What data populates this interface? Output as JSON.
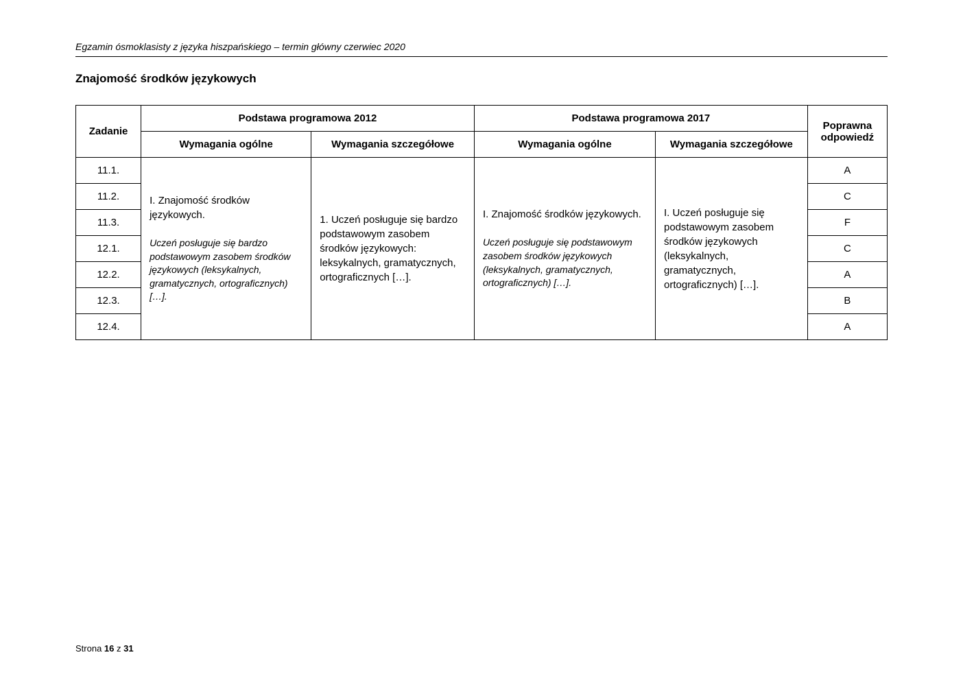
{
  "header": {
    "doc_title": "Egzamin ósmoklasisty z języka hiszpańskiego – termin główny czerwiec 2020",
    "section_title": "Znajomość środków językowych"
  },
  "table": {
    "head": {
      "zadanie": "Zadanie",
      "pp2012": "Podstawa programowa 2012",
      "pp2017": "Podstawa programowa 2017",
      "poprawna": "Poprawna odpowiedź",
      "wym_ogolne": "Wymagania ogólne",
      "wym_szcz": "Wymagania szczegółowe"
    },
    "merged": {
      "wo2012_main": "I. Znajomość środków językowych.",
      "wo2012_sub": "Uczeń posługuje się bardzo podstawowym zasobem środków językowych (leksykalnych, gramatycznych, ortograficznych) […].",
      "ws2012": "1. Uczeń posługuje się bardzo podstawowym zasobem środków językowych: leksykalnych, gramatycznych, ortograficznych […].",
      "wo2017_main": "I. Znajomość środków językowych.",
      "wo2017_sub": "Uczeń posługuje się podstawowym zasobem środków językowych (leksykalnych, gramatycznych, ortograficznych) […].",
      "ws2017": "I. Uczeń posługuje się podstawowym zasobem środków językowych (leksykalnych, gramatycznych, ortograficznych) […]."
    },
    "rows": [
      {
        "zadanie": "11.1.",
        "odp": "A"
      },
      {
        "zadanie": "11.2.",
        "odp": "C"
      },
      {
        "zadanie": "11.3.",
        "odp": "F"
      },
      {
        "zadanie": "12.1.",
        "odp": "C"
      },
      {
        "zadanie": "12.2.",
        "odp": "A"
      },
      {
        "zadanie": "12.3.",
        "odp": "B"
      },
      {
        "zadanie": "12.4.",
        "odp": "A"
      }
    ]
  },
  "footer": {
    "prefix": "Strona ",
    "page": "16",
    "mid": " z ",
    "total": "31"
  }
}
